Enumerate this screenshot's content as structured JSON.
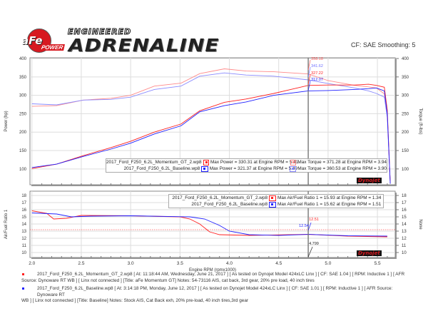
{
  "header": {
    "logo_brand": "aFe",
    "logo_sub": "POWER",
    "logo_tag1": "ENGINEERED",
    "logo_tag2": "ADRENALINE",
    "cf_smoothing": "CF: SAE Smoothing: 5",
    "dynojet_logo": "Dynojet"
  },
  "colors": {
    "momentum_power": "#ff2020",
    "momentum_torque": "#ff8a8a",
    "baseline_power": "#2020ff",
    "baseline_torque": "#8a8aff",
    "cursor": "#777777"
  },
  "chart_data": [
    {
      "type": "line",
      "xlabel": "Engine RPM (rpmx1000)",
      "ylabel": "Power (hp)",
      "y2label": "Torque (ft-lbs)",
      "xlim": [
        1.98,
        5.68
      ],
      "ylim": [
        57,
        402
      ],
      "y2lim": [
        57,
        402
      ],
      "xticks": [
        "2.0",
        "2.5",
        "3.0",
        "3.5",
        "4.0",
        "4.5",
        "5.0",
        "5.5"
      ],
      "yticks": [
        "100",
        "150",
        "200",
        "250",
        "300",
        "350",
        "400"
      ],
      "grid": true,
      "cursor_rpm": 4.799,
      "cursor_values": [
        "358.18",
        "341.62",
        "327.22",
        "312.07"
      ],
      "legend": {
        "placement": "bottom-right",
        "rows": [
          {
            "file": "2017_Ford_F250_6.2L_Momentum_GT_2.wp8",
            "power": "Max Power = 330.31 at Engine RPM = 5.41",
            "torque": "Max Torque = 371.28 at Engine RPM = 3.94"
          },
          {
            "file": "2017_Ford_F250_6.2L_Baseline.wp8",
            "power": "Max Power = 321.37 at Engine RPM = 5.49",
            "torque": "Max Torque = 360.53 at Engine RPM = 3.90"
          }
        ]
      },
      "x": [
        2.0,
        2.25,
        2.52,
        2.8,
        3.0,
        3.24,
        3.51,
        3.7,
        3.95,
        4.17,
        4.45,
        4.8,
        5.0,
        5.27,
        5.41,
        5.49,
        5.57,
        5.6,
        5.63
      ],
      "series": [
        {
          "key": "momentum_torque",
          "values": [
            270,
            272,
            287,
            292,
            300,
            325,
            333,
            359,
            372,
            366,
            364,
            358,
            340,
            327,
            323,
            320,
            304,
            250,
            60
          ]
        },
        {
          "key": "baseline_torque",
          "values": [
            277,
            274,
            287,
            289,
            295,
            316,
            325,
            352,
            361,
            355,
            352,
            342,
            332,
            320,
            312,
            305,
            295,
            240,
            60
          ]
        },
        {
          "key": "momentum_power",
          "values": [
            101,
            113,
            136,
            158,
            175,
            200,
            222,
            258,
            281,
            290,
            305,
            327,
            328,
            328,
            330,
            327,
            322,
            260,
            60
          ]
        },
        {
          "key": "baseline_power",
          "values": [
            104,
            113,
            134,
            154,
            170,
            195,
            217,
            255,
            272,
            282,
            300,
            312,
            313,
            316,
            318,
            320,
            312,
            250,
            60
          ]
        }
      ]
    },
    {
      "type": "line",
      "ylabel": "Air/Fuel Ratio 1",
      "y2label": "None",
      "xlim": [
        1.98,
        5.68
      ],
      "ylim": [
        9.3,
        18.6
      ],
      "yticks": [
        "10",
        "11",
        "12",
        "13",
        "14",
        "15",
        "16",
        "17",
        "18"
      ],
      "grid": true,
      "reference_line": 13.2,
      "cursor_rpm": 4.799,
      "cursor_label": "4.799",
      "cursor_values": [
        "12.51",
        "12.54"
      ],
      "legend": {
        "placement": "top-right",
        "rows": [
          {
            "file": "2017_Ford_F250_6.2L_Momentum_GT_2.wp8",
            "afr": "Max Air/Fuel Ratio 1 = 15.93 at Engine RPM = 1.34"
          },
          {
            "file": "2017_Ford_F250_6.2L_Baseline.wp8",
            "afr": "Max Air/Fuel Ratio 1 = 15.62 at Engine RPM = 1.51"
          }
        ]
      },
      "series": [
        {
          "key": "momentum_power",
          "x": [
            2.0,
            2.15,
            2.22,
            2.35,
            2.5,
            3.0,
            3.5,
            3.6,
            3.7,
            3.8,
            3.9,
            4.2,
            4.8,
            5.2,
            5.6
          ],
          "values": [
            15.85,
            15.5,
            14.7,
            14.8,
            15.2,
            15.15,
            15.0,
            14.7,
            14.0,
            12.9,
            12.5,
            12.4,
            12.55,
            12.3,
            12.2
          ]
        },
        {
          "key": "baseline_power",
          "x": [
            2.0,
            2.25,
            2.4,
            2.6,
            3.0,
            3.6,
            3.75,
            3.9,
            4.0,
            4.2,
            4.5,
            4.8,
            5.2,
            5.6
          ],
          "values": [
            15.55,
            15.4,
            15.0,
            15.1,
            15.15,
            15.0,
            14.7,
            13.8,
            13.0,
            12.5,
            12.4,
            12.54,
            12.35,
            12.3
          ]
        }
      ]
    }
  ],
  "notes": [
    {
      "line1": "2017_Ford_F250_6.2L_Momentum_GT_2.wp8 [ At: 11:18:44 AM, Wednesday, June 21, 2017 ] [ As tested on Dynojet Model 424xLC Linx ] [ CF: SAE 1.04 ] [ RPM: Inductive 1 ] [ AFR",
      "line2": "Source: Dynoware RT WB ] [ Linx not connected ] [Title: aFe Momentum GT]  Notes: 54-73116 AIS, cat back, 3rd gear, 20% pre load, 40 inch tires"
    },
    {
      "line1": "2017_Ford_F250_6.2L_Baseline.wp8 [ At: 3:14:18 PM, Monday, June 12, 2017 ] [ As tested on Dynojet Model 424xLC Linx ] [ CF: SAE 1.01 ] [ RPM: Inductive 1 ] [ AFR Source: Dynoware RT",
      "line2": "WB ] [ Linx not connected ] [Title: Baseline]  Notes: Stock AIS,  Cat Back exh, 20% pre-load, 40 inch tires,3rd gear"
    }
  ]
}
